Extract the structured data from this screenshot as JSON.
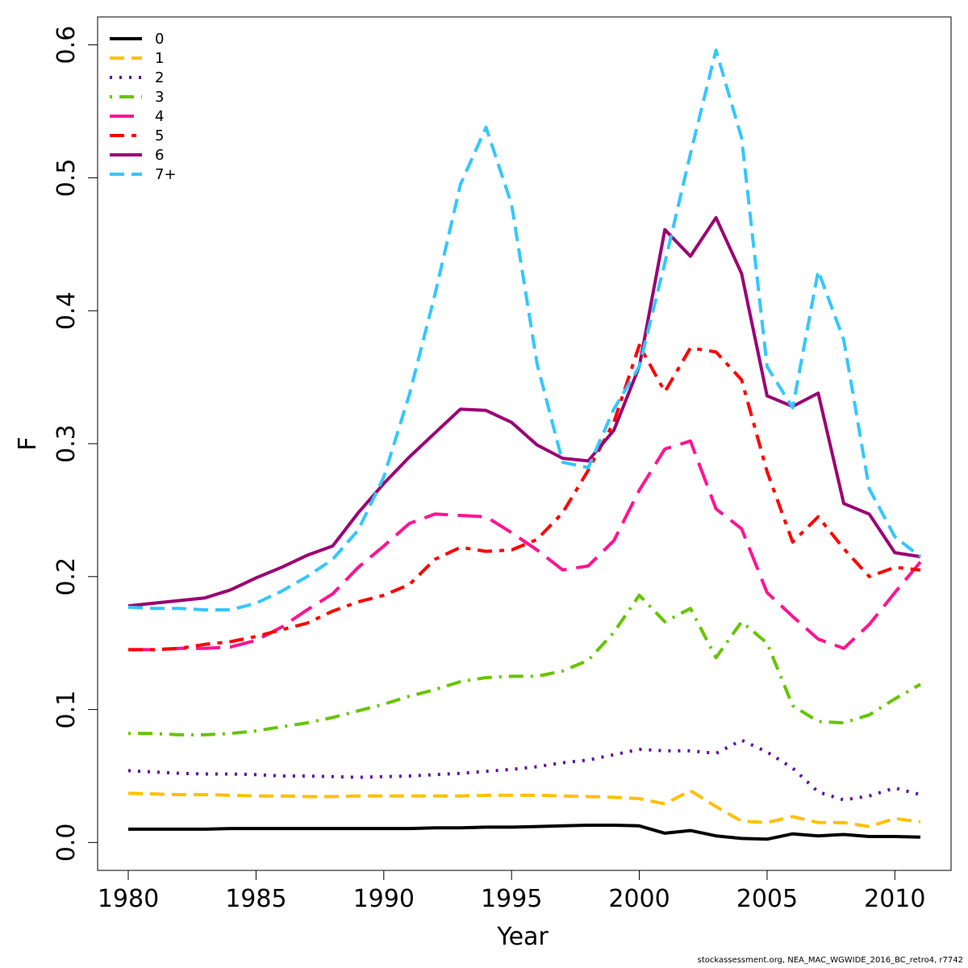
{
  "chart_data": {
    "type": "line",
    "xlabel": "Year",
    "ylabel": "F",
    "xlim": [
      1978.8,
      2012.2
    ],
    "ylim": [
      -0.021,
      0.621
    ],
    "x_ticks": [
      1980,
      1985,
      1990,
      1995,
      2000,
      2005,
      2010
    ],
    "y_ticks": [
      0.0,
      0.1,
      0.2,
      0.3,
      0.4,
      0.5,
      0.6
    ],
    "x_tick_labels": [
      "1980",
      "1985",
      "1990",
      "1995",
      "2000",
      "2005",
      "2010"
    ],
    "y_tick_labels": [
      "0.0",
      "0.1",
      "0.2",
      "0.3",
      "0.4",
      "0.5",
      "0.6"
    ],
    "grid": false,
    "legend_position": "top-left",
    "x": [
      1980,
      1981,
      1982,
      1983,
      1984,
      1985,
      1986,
      1987,
      1988,
      1989,
      1990,
      1991,
      1992,
      1993,
      1994,
      1995,
      1996,
      1997,
      1998,
      1999,
      2000,
      2001,
      2002,
      2003,
      2004,
      2005,
      2006,
      2007,
      2008,
      2009,
      2010,
      2011
    ],
    "series": [
      {
        "name": "0",
        "color": "#000000",
        "dash": "solid",
        "values": [
          0.01,
          0.01,
          0.01,
          0.01,
          0.0105,
          0.0105,
          0.0105,
          0.0105,
          0.0105,
          0.0105,
          0.0105,
          0.0105,
          0.011,
          0.011,
          0.0115,
          0.0115,
          0.012,
          0.0125,
          0.013,
          0.013,
          0.0125,
          0.007,
          0.009,
          0.005,
          0.003,
          0.0025,
          0.0065,
          0.005,
          0.006,
          0.0045,
          0.0045,
          0.004
        ]
      },
      {
        "name": "1",
        "color": "#FFC000",
        "dash": "dash",
        "values": [
          0.037,
          0.0365,
          0.036,
          0.036,
          0.0355,
          0.035,
          0.035,
          0.0345,
          0.0345,
          0.035,
          0.035,
          0.035,
          0.035,
          0.035,
          0.0355,
          0.0355,
          0.0355,
          0.035,
          0.0345,
          0.034,
          0.033,
          0.029,
          0.039,
          0.027,
          0.016,
          0.015,
          0.0195,
          0.015,
          0.015,
          0.012,
          0.018,
          0.0155
        ]
      },
      {
        "name": "2",
        "color": "#5E0DA0",
        "dash": "dot",
        "values": [
          0.054,
          0.053,
          0.052,
          0.0515,
          0.0515,
          0.051,
          0.05,
          0.05,
          0.0495,
          0.049,
          0.0495,
          0.05,
          0.051,
          0.052,
          0.0535,
          0.055,
          0.057,
          0.06,
          0.062,
          0.066,
          0.07,
          0.069,
          0.069,
          0.067,
          0.077,
          0.068,
          0.056,
          0.038,
          0.032,
          0.035,
          0.041,
          0.036
        ]
      },
      {
        "name": "3",
        "color": "#66C400",
        "dash": "dotdash",
        "values": [
          0.082,
          0.082,
          0.081,
          0.081,
          0.082,
          0.084,
          0.087,
          0.09,
          0.094,
          0.099,
          0.104,
          0.11,
          0.115,
          0.121,
          0.124,
          0.125,
          0.125,
          0.129,
          0.137,
          0.158,
          0.186,
          0.166,
          0.176,
          0.139,
          0.166,
          0.15,
          0.103,
          0.091,
          0.09,
          0.096,
          0.108,
          0.119
        ]
      },
      {
        "name": "4",
        "color": "#FF1493",
        "dash": "longdash",
        "values": [
          0.145,
          0.145,
          0.146,
          0.146,
          0.147,
          0.152,
          0.162,
          0.175,
          0.187,
          0.207,
          0.223,
          0.24,
          0.247,
          0.246,
          0.245,
          0.233,
          0.22,
          0.205,
          0.208,
          0.227,
          0.265,
          0.296,
          0.302,
          0.251,
          0.236,
          0.188,
          0.17,
          0.153,
          0.146,
          0.164,
          0.188,
          0.211
        ]
      },
      {
        "name": "5",
        "color": "#FF0000",
        "dash": "twodash",
        "values": [
          0.145,
          0.145,
          0.146,
          0.149,
          0.151,
          0.155,
          0.16,
          0.165,
          0.174,
          0.181,
          0.186,
          0.194,
          0.213,
          0.222,
          0.219,
          0.22,
          0.228,
          0.248,
          0.28,
          0.316,
          0.374,
          0.339,
          0.372,
          0.369,
          0.348,
          0.279,
          0.226,
          0.245,
          0.221,
          0.2,
          0.207,
          0.205
        ]
      },
      {
        "name": "6",
        "color": "#9B0073",
        "dash": "solid",
        "values": [
          0.178,
          0.18,
          0.182,
          0.184,
          0.19,
          0.199,
          0.207,
          0.216,
          0.223,
          0.248,
          0.27,
          0.29,
          0.308,
          0.326,
          0.325,
          0.316,
          0.299,
          0.289,
          0.287,
          0.31,
          0.358,
          0.461,
          0.441,
          0.47,
          0.428,
          0.336,
          0.328,
          0.338,
          0.255,
          0.247,
          0.218,
          0.215
        ]
      },
      {
        "name": "7+",
        "color": "#33C7FF",
        "dash": "dash",
        "values": [
          0.177,
          0.176,
          0.176,
          0.175,
          0.175,
          0.18,
          0.189,
          0.2,
          0.213,
          0.235,
          0.275,
          0.337,
          0.412,
          0.495,
          0.538,
          0.48,
          0.36,
          0.286,
          0.282,
          0.326,
          0.358,
          0.436,
          0.518,
          0.596,
          0.53,
          0.358,
          0.327,
          0.43,
          0.378,
          0.266,
          0.23,
          0.215
        ]
      }
    ],
    "footer": "stockassessment.org, NEA_MAC_WGWIDE_2016_BC_retro4, r7742"
  }
}
